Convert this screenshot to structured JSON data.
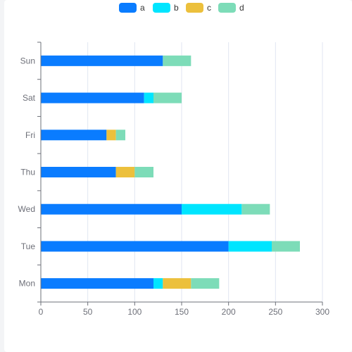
{
  "chart_data": {
    "type": "bar",
    "orientation": "horizontal",
    "stacked": true,
    "categories": [
      "Mon",
      "Tue",
      "Wed",
      "Thu",
      "Fri",
      "Sat",
      "Sun"
    ],
    "series": [
      {
        "name": "a",
        "color": "#0a7cff",
        "values": [
          120,
          200,
          150,
          80,
          70,
          110,
          130
        ]
      },
      {
        "name": "b",
        "color": "#00e5ff",
        "values": [
          10,
          46,
          64,
          0,
          0,
          10,
          0
        ]
      },
      {
        "name": "c",
        "color": "#ecc03c",
        "values": [
          30,
          0,
          0,
          20,
          10,
          0,
          0
        ]
      },
      {
        "name": "d",
        "color": "#7ddcb8",
        "values": [
          30,
          30,
          30,
          20,
          10,
          30,
          30
        ]
      }
    ],
    "xlim": [
      0,
      300
    ],
    "xticks": [
      0,
      50,
      100,
      150,
      200,
      250,
      300
    ],
    "grid": true,
    "legend_position": "top-center",
    "title": "",
    "xlabel": "",
    "ylabel": ""
  }
}
